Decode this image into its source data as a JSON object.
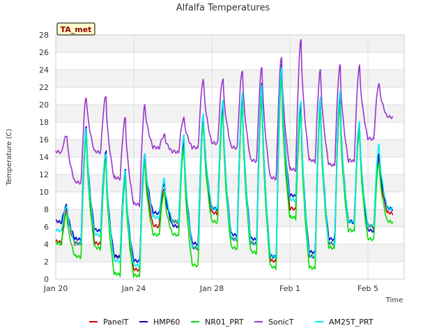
{
  "chart_data": {
    "type": "line",
    "title": "Alfalfa Temperatures",
    "xlabel": "Time",
    "ylabel": "Temperature (C)",
    "annotation": "TA_met",
    "ylim": [
      0,
      28
    ],
    "y_ticks": [
      0,
      2,
      4,
      6,
      8,
      10,
      12,
      14,
      16,
      18,
      20,
      22,
      24,
      26,
      28
    ],
    "xlim": [
      "2019-01-20",
      "2019-02-07"
    ],
    "x_ticks": [
      {
        "label": "Jan 20",
        "day": 0
      },
      {
        "label": "Jan 24",
        "day": 4
      },
      {
        "label": "Jan 28",
        "day": 8
      },
      {
        "label": "Feb 1",
        "day": 12
      },
      {
        "label": "Feb 5",
        "day": 16
      }
    ],
    "grid": "horizontal bands",
    "legend_position": "bottom",
    "series": [
      {
        "name": "PanelT",
        "color": "#cc0000",
        "daily_min": [
          4.2,
          4.0,
          4.0,
          2.5,
          1.0,
          6.0,
          6.5,
          3.5,
          7.5,
          4.5,
          4.0,
          2.0,
          8.0,
          2.5,
          4.0,
          6.5,
          6.0,
          7.5
        ],
        "daily_max": [
          8.0,
          17.0,
          14.0,
          12.0,
          14.0,
          10.5,
          15.5,
          18.5,
          19.5,
          20.5,
          22.0,
          24.0,
          19.5,
          20.0,
          21.0,
          17.5,
          14.0
        ]
      },
      {
        "name": "HMP60",
        "color": "#0000cc",
        "daily_min": [
          6.5,
          4.5,
          5.5,
          2.5,
          2.0,
          7.5,
          6.0,
          4.0,
          8.0,
          5.0,
          4.5,
          2.5,
          9.5,
          3.0,
          4.5,
          6.5,
          5.5,
          8.0
        ],
        "daily_max": [
          8.5,
          17.5,
          14.5,
          12.5,
          14.5,
          11.0,
          16.0,
          19.0,
          20.0,
          21.0,
          22.5,
          24.5,
          20.0,
          20.5,
          21.5,
          18.0,
          14.5
        ]
      },
      {
        "name": "NR01_PRT",
        "color": "#00dd00",
        "daily_min": [
          4.0,
          2.5,
          3.5,
          0.5,
          0.3,
          5.0,
          5.0,
          1.5,
          6.5,
          3.5,
          3.0,
          1.3,
          7.0,
          1.2,
          3.5,
          5.5,
          4.5,
          6.5
        ],
        "daily_max": [
          7.5,
          16.5,
          13.5,
          11.5,
          13.5,
          10.0,
          15.0,
          18.0,
          19.0,
          20.0,
          21.0,
          23.0,
          19.0,
          19.5,
          20.0,
          17.0,
          13.5
        ]
      },
      {
        "name": "SonicT",
        "color": "#9933cc",
        "daily_min": [
          14.5,
          11.0,
          14.5,
          11.5,
          8.5,
          15.0,
          14.5,
          15.0,
          15.5,
          15.0,
          13.5,
          11.5,
          12.5,
          13.5,
          13.0,
          13.5,
          16.0,
          18.5
        ],
        "daily_max": [
          16.5,
          21.0,
          21.0,
          18.5,
          20.0,
          16.5,
          18.5,
          23.0,
          23.0,
          24.0,
          24.5,
          25.5,
          27.5,
          24.0,
          24.5,
          24.5,
          22.5
        ]
      },
      {
        "name": "AM25T_PRT",
        "color": "#00eeee",
        "daily_min": [
          5.5,
          4.0,
          5.0,
          2.0,
          1.5,
          7.0,
          6.5,
          3.5,
          8.0,
          4.5,
          4.0,
          2.5,
          9.0,
          2.5,
          4.0,
          6.5,
          6.0,
          8.0
        ],
        "daily_max": [
          8.5,
          17.5,
          14.5,
          12.5,
          14.5,
          11.5,
          16.5,
          19.0,
          20.5,
          21.5,
          22.5,
          24.5,
          20.5,
          21.0,
          21.5,
          18.0,
          15.5
        ]
      }
    ]
  }
}
